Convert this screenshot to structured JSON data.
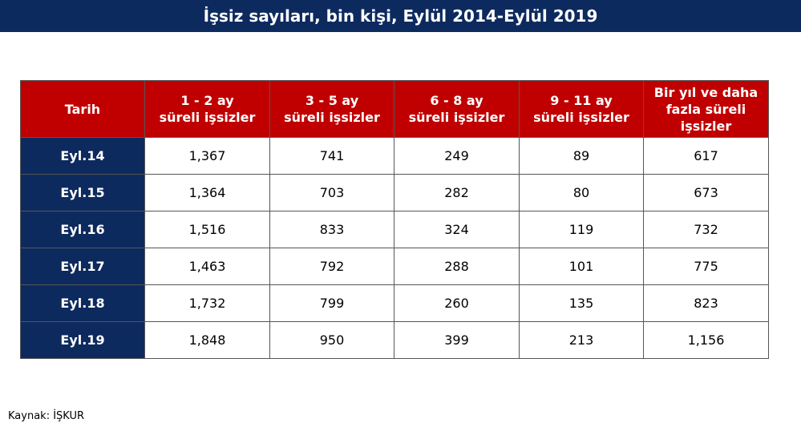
{
  "header": {
    "title": "İşsiz sayıları, bin kişi, Eylül 2014-Eylül 2019"
  },
  "table": {
    "columns": [
      "Tarih",
      "1 - 2 ay\nsüreli işsizler",
      "3 - 5 ay\nsüreli işsizler",
      "6 - 8 ay\nsüreli işsizler",
      "9 - 11 ay\nsüreli işsizler",
      "Bir yıl ve daha\nfazla süreli\nişsizler"
    ],
    "rows": [
      [
        "Eyl.14",
        "1,367",
        "741",
        "249",
        "89",
        "617"
      ],
      [
        "Eyl.15",
        "1,364",
        "703",
        "282",
        "80",
        "673"
      ],
      [
        "Eyl.16",
        "1,516",
        "833",
        "324",
        "119",
        "732"
      ],
      [
        "Eyl.17",
        "1,463",
        "792",
        "288",
        "101",
        "775"
      ],
      [
        "Eyl.18",
        "1,732",
        "799",
        "260",
        "135",
        "823"
      ],
      [
        "Eyl.19",
        "1,848",
        "950",
        "399",
        "213",
        "1,156"
      ]
    ]
  },
  "footer": {
    "source": "Kaynak: İŞKUR"
  }
}
